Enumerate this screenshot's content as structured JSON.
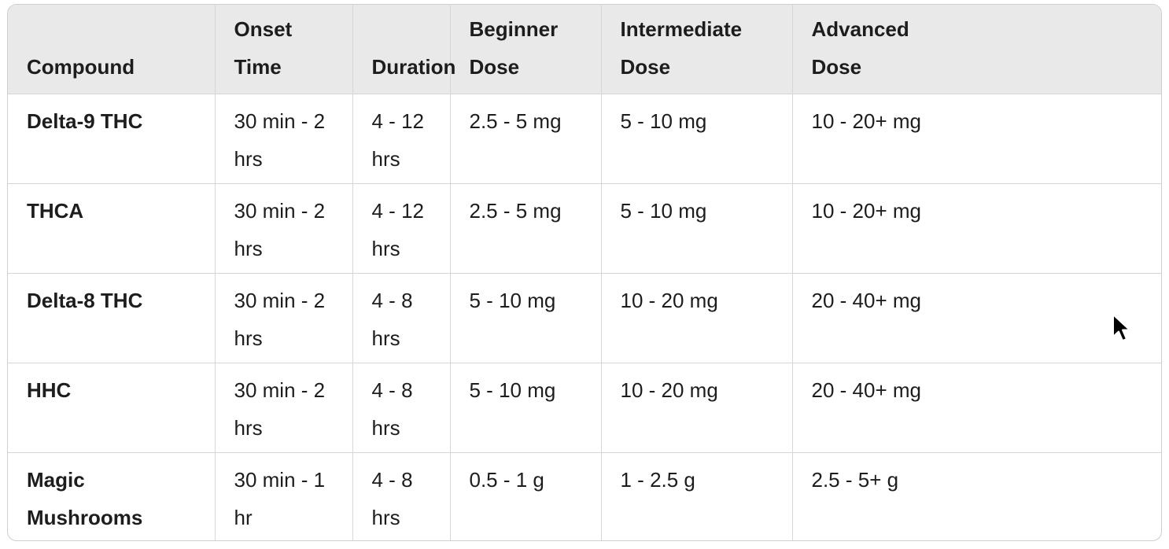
{
  "table": {
    "headers": [
      {
        "key": "compound",
        "line1": "Compound"
      },
      {
        "key": "onset-time",
        "line1": "Onset Time"
      },
      {
        "key": "duration",
        "line1": "Duration"
      },
      {
        "key": "beginner-dose",
        "line1": "Beginner",
        "line2": "Dose"
      },
      {
        "key": "intermediate-dose",
        "line1": "Intermediate",
        "line2": "Dose"
      },
      {
        "key": "advanced-dose",
        "line1": "Advanced",
        "line2": "Dose"
      }
    ],
    "rows": [
      {
        "compound": [
          "Delta-9 THC"
        ],
        "onset": [
          "30 min - 2",
          "hrs"
        ],
        "duration": [
          "4 - 12",
          "hrs"
        ],
        "beginner": [
          "2.5 - 5 mg"
        ],
        "intermediate": [
          "5 - 10 mg"
        ],
        "advanced": [
          "10 - 20+ mg"
        ]
      },
      {
        "compound": [
          "THCA"
        ],
        "onset": [
          "30 min - 2",
          "hrs"
        ],
        "duration": [
          "4 - 12",
          "hrs"
        ],
        "beginner": [
          "2.5 - 5 mg"
        ],
        "intermediate": [
          "5 - 10 mg"
        ],
        "advanced": [
          "10 - 20+ mg"
        ]
      },
      {
        "compound": [
          "Delta-8 THC"
        ],
        "onset": [
          "30 min - 2",
          "hrs"
        ],
        "duration": [
          "4 - 8 hrs"
        ],
        "beginner": [
          "5 - 10 mg"
        ],
        "intermediate": [
          "10 - 20 mg"
        ],
        "advanced": [
          "20 - 40+ mg"
        ]
      },
      {
        "compound": [
          "HHC"
        ],
        "onset": [
          "30 min - 2",
          "hrs"
        ],
        "duration": [
          "4 - 8 hrs"
        ],
        "beginner": [
          "5 - 10 mg"
        ],
        "intermediate": [
          "10 - 20 mg"
        ],
        "advanced": [
          "20 - 40+ mg"
        ]
      },
      {
        "compound": [
          "Magic",
          "Mushrooms"
        ],
        "onset": [
          "30 min - 1 hr"
        ],
        "duration": [
          "4 - 8 hrs"
        ],
        "beginner": [
          "0.5 - 1 g"
        ],
        "intermediate": [
          "1 - 2.5 g"
        ],
        "advanced": [
          "2.5 - 5+ g"
        ]
      }
    ]
  },
  "cursor": {
    "icon": "arrow-pointer-icon"
  }
}
